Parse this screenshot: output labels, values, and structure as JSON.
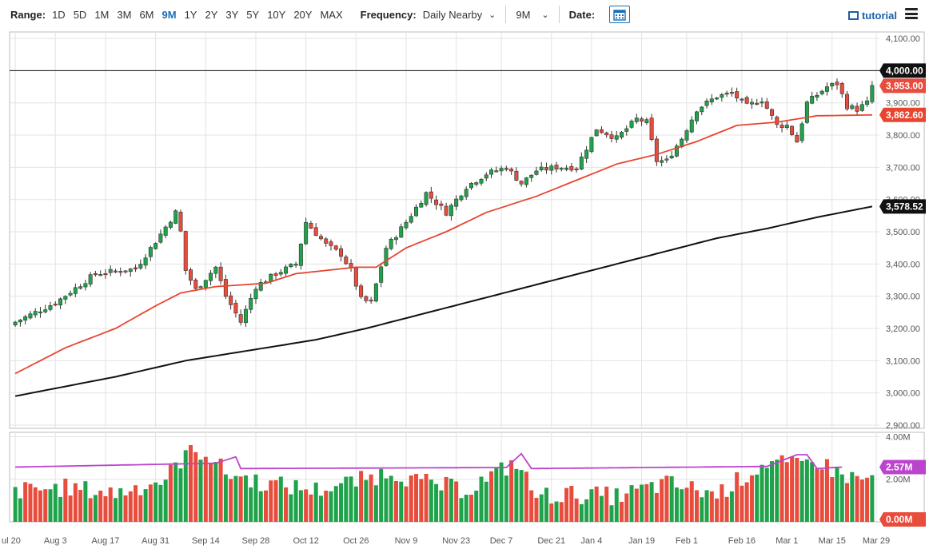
{
  "toolbar": {
    "range_label": "Range:",
    "ranges": [
      "1D",
      "5D",
      "1M",
      "3M",
      "6M",
      "9M",
      "1Y",
      "2Y",
      "3Y",
      "5Y",
      "10Y",
      "20Y",
      "MAX"
    ],
    "active_range": "9M",
    "frequency_label": "Frequency:",
    "frequency_value": "Daily Nearby",
    "period_value": "9M",
    "date_label": "Date:",
    "tutorial_label": "tutorial"
  },
  "colors": {
    "up": "#1fa34a",
    "down": "#e84c3d",
    "ma_short": "#e8452f",
    "ma_long": "#111111",
    "volume_avg": "#bb44cc",
    "active_range": "#1a6fb6"
  },
  "icons": {
    "calendar": "calendar-icon",
    "tutorial": "film-icon",
    "menu": "hamburger-icon"
  },
  "chart_data": {
    "type": "candlestick",
    "x_ticks": [
      "ul 20",
      "Aug 3",
      "Aug 17",
      "Aug 31",
      "Sep 14",
      "Sep 28",
      "Oct 12",
      "Oct 26",
      "Nov 9",
      "Nov 23",
      "Dec 7",
      "Dec 21",
      "Jan 4",
      "Jan 19",
      "Feb 1",
      "Feb 16",
      "Mar 1",
      "Mar 15",
      "Mar 29"
    ],
    "price_ticks": [
      "4,100.00",
      "4,000.00",
      "3,900.00",
      "3,800.00",
      "3,700.00",
      "3,600.00",
      "3,500.00",
      "3,400.00",
      "3,300.00",
      "3,200.00",
      "3,100.00",
      "3,000.00",
      "2,900.00"
    ],
    "ylim": [
      2890,
      4120
    ],
    "volume_ticks": [
      "4.00M",
      "2.00M"
    ],
    "volume_ylim": [
      0,
      4.2
    ],
    "reference_line": {
      "value": 4000,
      "label": "4,000.00"
    },
    "last_price_label": "3,953.00",
    "ma_short_label": "3,862.60",
    "ma_long_label": "3,578.52",
    "volume_avg_label": "2.57M",
    "volume_zero_label": "0.00M",
    "anchors": [
      {
        "i": 0,
        "c": 3220
      },
      {
        "i": 8,
        "c": 3280
      },
      {
        "i": 16,
        "c": 3370
      },
      {
        "i": 24,
        "c": 3385
      },
      {
        "i": 28,
        "c": 3470
      },
      {
        "i": 32,
        "c": 3560
      },
      {
        "i": 33,
        "c": 3500
      },
      {
        "i": 34,
        "c": 3380
      },
      {
        "i": 36,
        "c": 3320
      },
      {
        "i": 40,
        "c": 3390
      },
      {
        "i": 42,
        "c": 3300
      },
      {
        "i": 45,
        "c": 3220
      },
      {
        "i": 48,
        "c": 3330
      },
      {
        "i": 52,
        "c": 3370
      },
      {
        "i": 56,
        "c": 3400
      },
      {
        "i": 58,
        "c": 3530
      },
      {
        "i": 62,
        "c": 3460
      },
      {
        "i": 65,
        "c": 3430
      },
      {
        "i": 67,
        "c": 3380
      },
      {
        "i": 69,
        "c": 3290
      },
      {
        "i": 71,
        "c": 3280
      },
      {
        "i": 74,
        "c": 3450
      },
      {
        "i": 78,
        "c": 3530
      },
      {
        "i": 82,
        "c": 3620
      },
      {
        "i": 86,
        "c": 3560
      },
      {
        "i": 90,
        "c": 3640
      },
      {
        "i": 94,
        "c": 3680
      },
      {
        "i": 98,
        "c": 3700
      },
      {
        "i": 101,
        "c": 3650
      },
      {
        "i": 104,
        "c": 3690
      },
      {
        "i": 108,
        "c": 3700
      },
      {
        "i": 112,
        "c": 3700
      },
      {
        "i": 116,
        "c": 3820
      },
      {
        "i": 120,
        "c": 3790
      },
      {
        "i": 124,
        "c": 3850
      },
      {
        "i": 126,
        "c": 3840
      },
      {
        "i": 128,
        "c": 3720
      },
      {
        "i": 130,
        "c": 3720
      },
      {
        "i": 133,
        "c": 3790
      },
      {
        "i": 136,
        "c": 3880
      },
      {
        "i": 140,
        "c": 3920
      },
      {
        "i": 143,
        "c": 3930
      },
      {
        "i": 146,
        "c": 3890
      },
      {
        "i": 149,
        "c": 3910
      },
      {
        "i": 152,
        "c": 3830
      },
      {
        "i": 154,
        "c": 3830
      },
      {
        "i": 156,
        "c": 3780
      },
      {
        "i": 158,
        "c": 3900
      },
      {
        "i": 162,
        "c": 3950
      },
      {
        "i": 164,
        "c": 3960
      },
      {
        "i": 166,
        "c": 3890
      },
      {
        "i": 168,
        "c": 3880
      },
      {
        "i": 170,
        "c": 3900
      },
      {
        "i": 171,
        "c": 3953
      }
    ],
    "ma_short_anchors": [
      {
        "i": 0,
        "v": 3060
      },
      {
        "i": 10,
        "v": 3140
      },
      {
        "i": 20,
        "v": 3200
      },
      {
        "i": 28,
        "v": 3270
      },
      {
        "i": 33,
        "v": 3310
      },
      {
        "i": 40,
        "v": 3330
      },
      {
        "i": 50,
        "v": 3340
      },
      {
        "i": 56,
        "v": 3370
      },
      {
        "i": 62,
        "v": 3380
      },
      {
        "i": 68,
        "v": 3390
      },
      {
        "i": 72,
        "v": 3390
      },
      {
        "i": 78,
        "v": 3450
      },
      {
        "i": 86,
        "v": 3500
      },
      {
        "i": 94,
        "v": 3560
      },
      {
        "i": 104,
        "v": 3610
      },
      {
        "i": 112,
        "v": 3660
      },
      {
        "i": 120,
        "v": 3710
      },
      {
        "i": 128,
        "v": 3740
      },
      {
        "i": 136,
        "v": 3780
      },
      {
        "i": 144,
        "v": 3830
      },
      {
        "i": 152,
        "v": 3840
      },
      {
        "i": 160,
        "v": 3860
      },
      {
        "i": 171,
        "v": 3862.6
      }
    ],
    "ma_long_anchors": [
      {
        "i": 0,
        "v": 2990
      },
      {
        "i": 20,
        "v": 3050
      },
      {
        "i": 34,
        "v": 3100
      },
      {
        "i": 50,
        "v": 3140
      },
      {
        "i": 60,
        "v": 3165
      },
      {
        "i": 70,
        "v": 3200
      },
      {
        "i": 80,
        "v": 3240
      },
      {
        "i": 90,
        "v": 3280
      },
      {
        "i": 100,
        "v": 3320
      },
      {
        "i": 110,
        "v": 3360
      },
      {
        "i": 120,
        "v": 3400
      },
      {
        "i": 130,
        "v": 3440
      },
      {
        "i": 140,
        "v": 3480
      },
      {
        "i": 150,
        "v": 3510
      },
      {
        "i": 160,
        "v": 3545
      },
      {
        "i": 171,
        "v": 3578.52
      }
    ],
    "volume_anchors": [
      {
        "i": 0,
        "v": 1.45
      },
      {
        "i": 10,
        "v": 1.6
      },
      {
        "i": 20,
        "v": 1.35
      },
      {
        "i": 30,
        "v": 2.0
      },
      {
        "i": 34,
        "v": 3.2
      },
      {
        "i": 38,
        "v": 3.3
      },
      {
        "i": 42,
        "v": 2.3
      },
      {
        "i": 50,
        "v": 1.8
      },
      {
        "i": 60,
        "v": 1.5
      },
      {
        "i": 70,
        "v": 2.0
      },
      {
        "i": 75,
        "v": 2.4
      },
      {
        "i": 80,
        "v": 1.9
      },
      {
        "i": 90,
        "v": 1.5
      },
      {
        "i": 100,
        "v": 2.8
      },
      {
        "i": 104,
        "v": 1.2
      },
      {
        "i": 110,
        "v": 1.3
      },
      {
        "i": 120,
        "v": 1.2
      },
      {
        "i": 130,
        "v": 1.8
      },
      {
        "i": 140,
        "v": 1.3
      },
      {
        "i": 146,
        "v": 2.2
      },
      {
        "i": 150,
        "v": 2.8
      },
      {
        "i": 156,
        "v": 2.6
      },
      {
        "i": 160,
        "v": 2.9
      },
      {
        "i": 164,
        "v": 2.3
      },
      {
        "i": 168,
        "v": 2.0
      },
      {
        "i": 171,
        "v": 2.0
      }
    ],
    "volume_avg_anchors": [
      {
        "i": 0,
        "v": 2.57
      },
      {
        "i": 40,
        "v": 2.75
      },
      {
        "i": 44,
        "v": 3.05
      },
      {
        "i": 45,
        "v": 2.5
      },
      {
        "i": 98,
        "v": 2.55
      },
      {
        "i": 101,
        "v": 3.2
      },
      {
        "i": 103,
        "v": 2.5
      },
      {
        "i": 150,
        "v": 2.6
      },
      {
        "i": 156,
        "v": 3.15
      },
      {
        "i": 158,
        "v": 3.15
      },
      {
        "i": 160,
        "v": 2.5
      },
      {
        "i": 165,
        "v": 2.57
      }
    ]
  }
}
